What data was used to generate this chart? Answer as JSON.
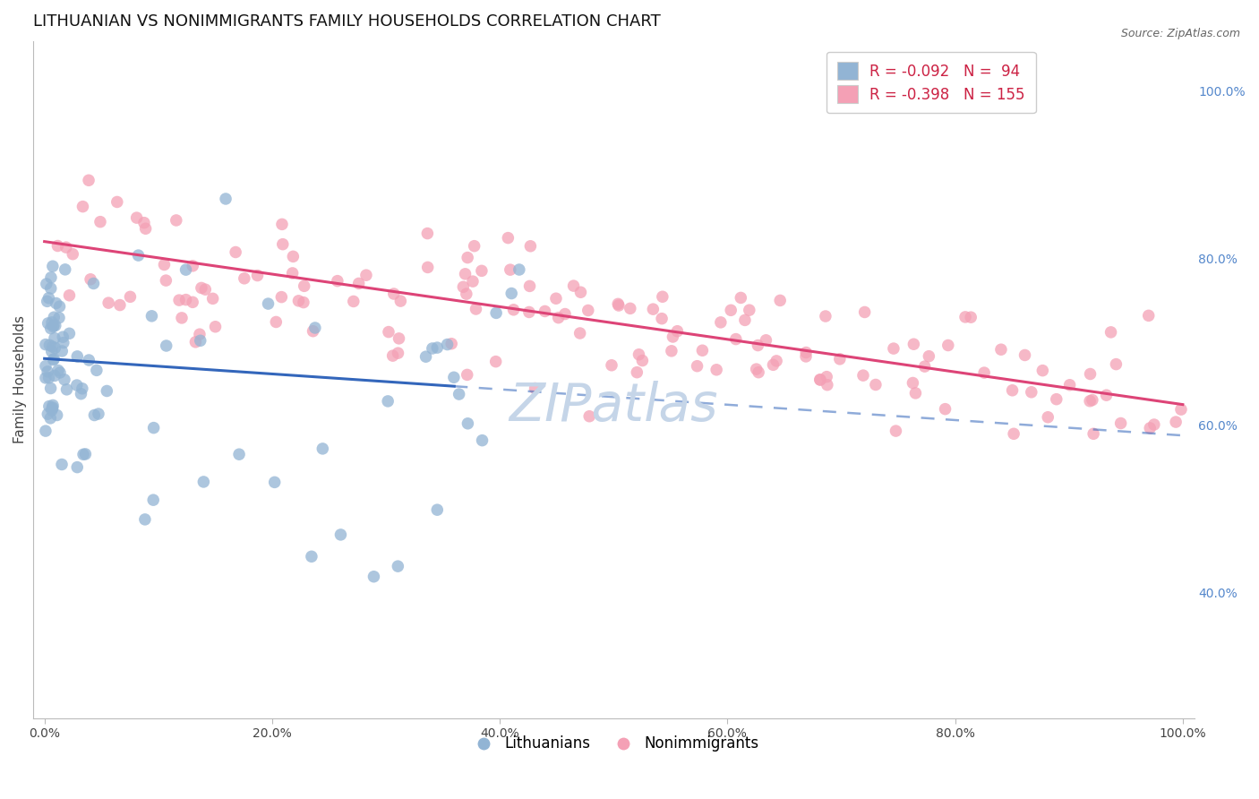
{
  "title": "LITHUANIAN VS NONIMMIGRANTS FAMILY HOUSEHOLDS CORRELATION CHART",
  "source": "Source: ZipAtlas.com",
  "ylabel": "Family Households",
  "right_yticks": [
    40.0,
    60.0,
    80.0,
    100.0
  ],
  "xlim": [
    -0.01,
    1.01
  ],
  "ylim": [
    0.25,
    1.06
  ],
  "blue_R": -0.092,
  "blue_N": 94,
  "pink_R": -0.398,
  "pink_N": 155,
  "blue_color": "#92B4D4",
  "pink_color": "#F4A0B5",
  "blue_line_color": "#3366BB",
  "pink_line_color": "#DD4477",
  "watermark": "ZIPatlas",
  "watermark_color": "#C5D5E8",
  "background_color": "#FFFFFF",
  "grid_color": "#E0E0E0",
  "title_fontsize": 13,
  "axis_label_fontsize": 11,
  "tick_fontsize": 10,
  "legend_fontsize": 12,
  "blue_intercept": 0.68,
  "blue_slope": -0.092,
  "pink_intercept": 0.82,
  "pink_slope": -0.195,
  "blue_line_xmax": 0.36
}
